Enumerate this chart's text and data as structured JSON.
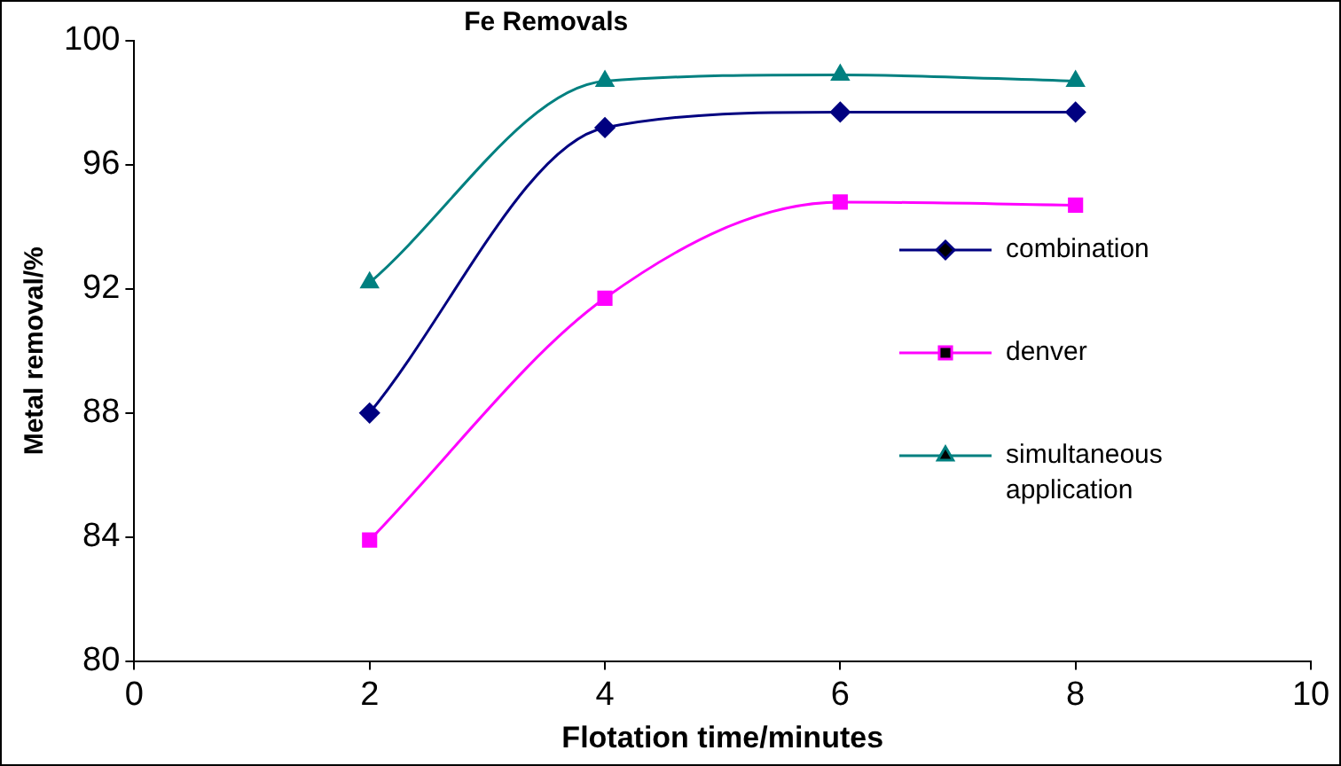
{
  "chart_data": {
    "type": "line",
    "title": "Fe Removals",
    "xlabel": "Flotation time/minutes",
    "ylabel": "Metal removal/%",
    "x": [
      2,
      4,
      6,
      8
    ],
    "series": [
      {
        "name": "combination",
        "color": "#000080",
        "marker": "diamond",
        "values": [
          88.0,
          97.2,
          97.7,
          97.7
        ]
      },
      {
        "name": "denver",
        "color": "#ff00ff",
        "marker": "square",
        "values": [
          83.9,
          91.7,
          94.8,
          94.7
        ]
      },
      {
        "name": "simultaneous application",
        "color": "#008080",
        "marker": "triangle",
        "values": [
          92.2,
          98.7,
          98.9,
          98.7
        ]
      }
    ],
    "xlim": [
      0,
      10
    ],
    "xticks": [
      0,
      2,
      4,
      6,
      8,
      10
    ],
    "ylim": [
      80,
      100
    ],
    "yticks": [
      80,
      84,
      88,
      92,
      96,
      100
    ],
    "grid": false,
    "legend": "right",
    "line_style": "solid"
  }
}
